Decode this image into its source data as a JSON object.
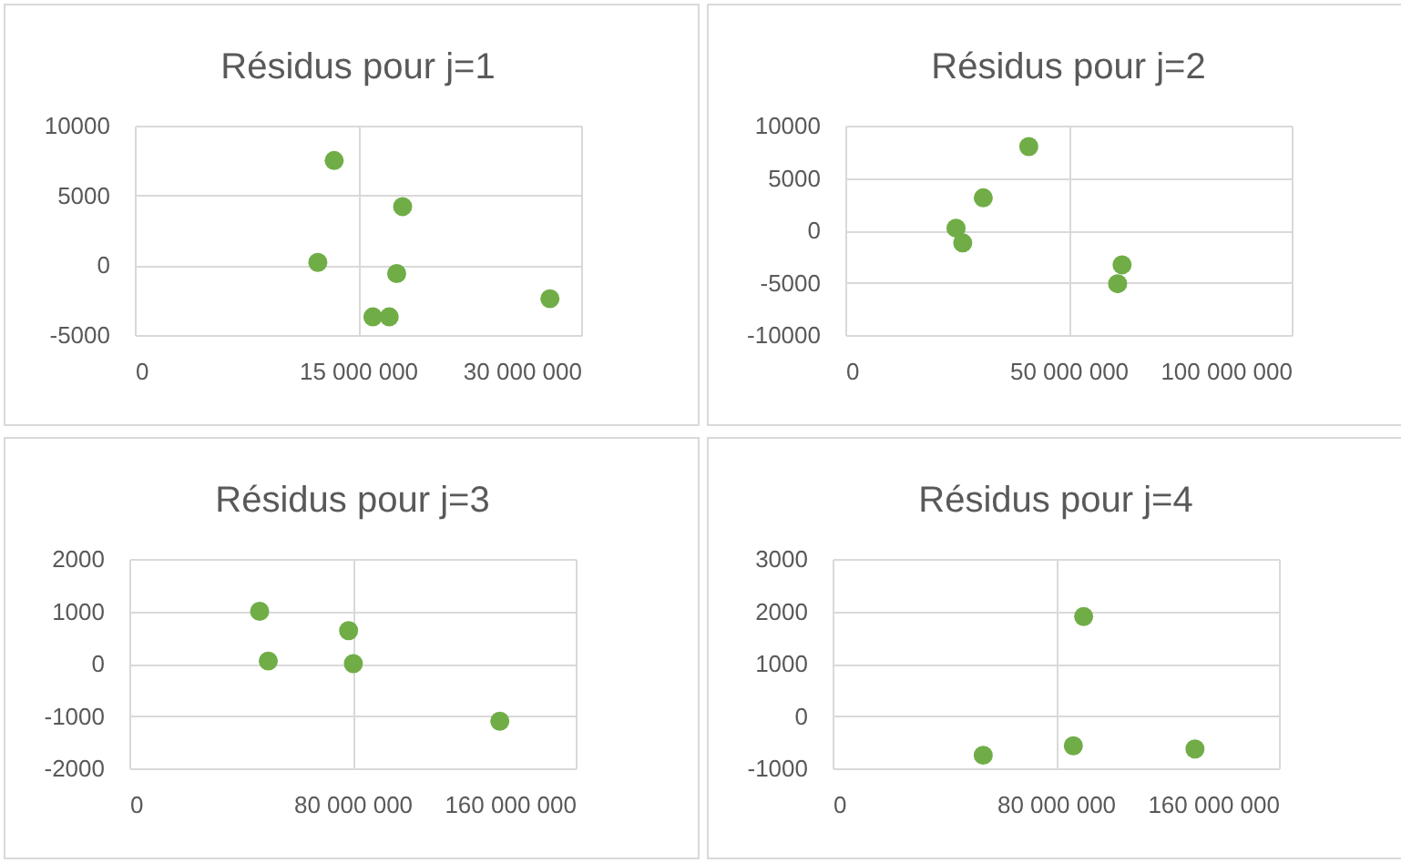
{
  "chart_data": [
    {
      "type": "scatter",
      "title": "Résidus pour j=1",
      "x": [
        13400000,
        12300000,
        18000000,
        17600000,
        16000000,
        17100000,
        27900000
      ],
      "values": [
        7500,
        200,
        4200,
        -600,
        -3700,
        -3700,
        -2400
      ],
      "color": "#70ad47",
      "xlim": [
        0,
        30000000
      ],
      "xticks": [
        {
          "value": 0,
          "label": "0"
        },
        {
          "value": 15000000,
          "label": "15 000 000"
        },
        {
          "value": 30000000,
          "label": "30 000 000"
        }
      ],
      "ylim": [
        -5000,
        10000
      ],
      "yticks": [
        -5000,
        0,
        5000,
        10000
      ],
      "grid": true,
      "marker": "circle"
    },
    {
      "type": "scatter",
      "title": "Résidus pour j=2",
      "x": [
        41100000,
        30900000,
        24800000,
        26300000,
        62000000,
        61000000
      ],
      "values": [
        8000,
        3100,
        200,
        -1200,
        -3300,
        -5100
      ],
      "color": "#70ad47",
      "xlim": [
        0,
        100000000
      ],
      "xticks": [
        {
          "value": 0,
          "label": "0"
        },
        {
          "value": 50000000,
          "label": "50 000 000"
        },
        {
          "value": 100000000,
          "label": "100 000 000"
        }
      ],
      "ylim": [
        -10000,
        10000
      ],
      "yticks": [
        -10000,
        -5000,
        0,
        5000,
        10000
      ],
      "grid": true,
      "marker": "circle"
    },
    {
      "type": "scatter",
      "title": "Résidus pour j=3",
      "x": [
        46700000,
        49800000,
        78600000,
        80300000,
        132800000
      ],
      "values": [
        1000,
        50,
        630,
        0,
        -1100
      ],
      "color": "#70ad47",
      "xlim": [
        0,
        160000000
      ],
      "xticks": [
        {
          "value": 0,
          "label": "0"
        },
        {
          "value": 80000000,
          "label": "80 000 000"
        },
        {
          "value": 160000000,
          "label": "160 000 000"
        }
      ],
      "ylim": [
        -2000,
        2000
      ],
      "yticks": [
        -2000,
        -1000,
        0,
        1000,
        2000
      ],
      "grid": true,
      "marker": "circle"
    },
    {
      "type": "scatter",
      "title": "Résidus pour j=4",
      "x": [
        90000000,
        54000000,
        86300000,
        129900000
      ],
      "values": [
        1900,
        -750,
        -570,
        -630
      ],
      "color": "#70ad47",
      "xlim": [
        0,
        160000000
      ],
      "xticks": [
        {
          "value": 0,
          "label": "0"
        },
        {
          "value": 80000000,
          "label": "80 000 000"
        },
        {
          "value": 160000000,
          "label": "160 000 000"
        }
      ],
      "ylim": [
        -1000,
        3000
      ],
      "yticks": [
        -1000,
        0,
        1000,
        2000,
        3000
      ],
      "grid": true,
      "marker": "circle"
    }
  ]
}
